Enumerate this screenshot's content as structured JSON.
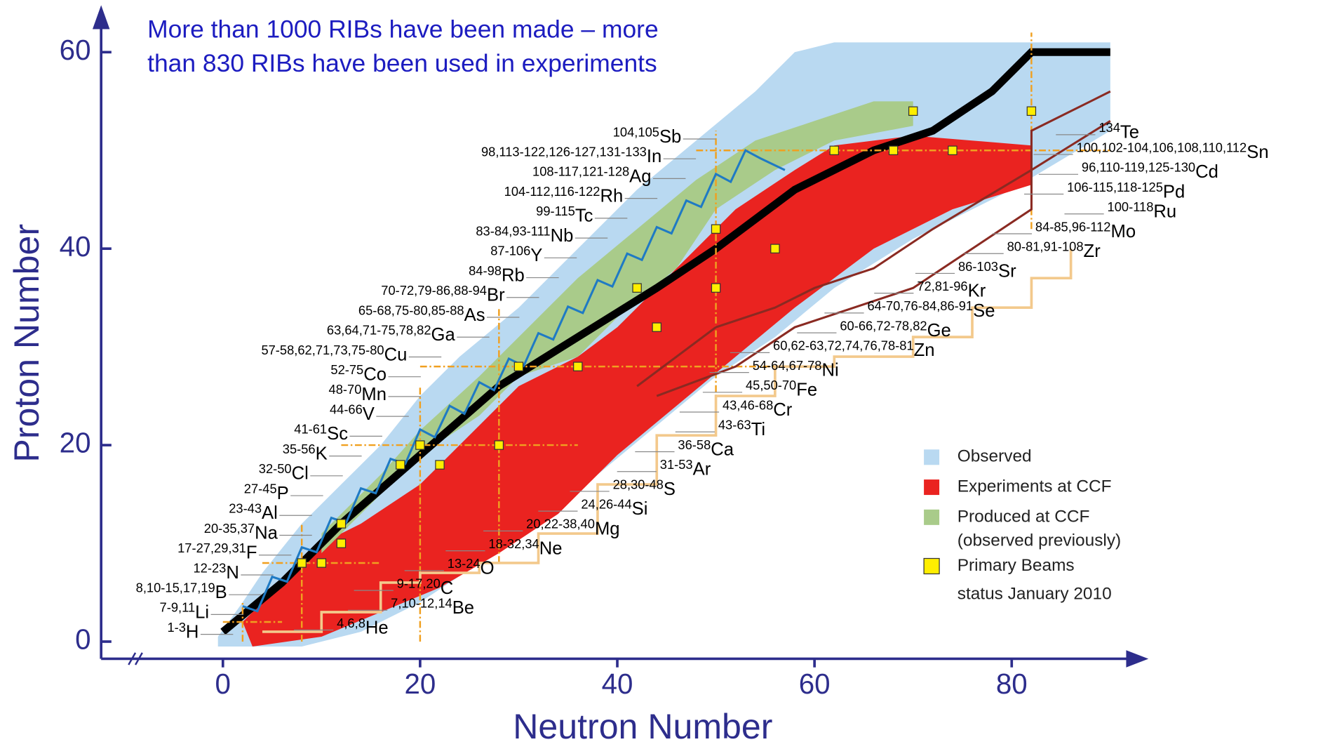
{
  "chart_data": {
    "type": "nuclide-chart",
    "title_lines": [
      "More than 1000 RIBs have been made – more",
      "than 830 RIBs have been used in experiments"
    ],
    "xlabel": "Neutron Number",
    "ylabel": "Proton Number",
    "xlim": [
      -12.35,
      93
    ],
    "ylim": [
      -1.75,
      64
    ],
    "xticks": [
      0,
      20,
      40,
      60,
      80
    ],
    "yticks": [
      0,
      20,
      40,
      60
    ],
    "series": [
      {
        "name": "Observed",
        "color": "#b9d9f1"
      },
      {
        "name": "Experiments at CCF",
        "color": "#ea2320"
      },
      {
        "name": "Produced at CCF",
        "note": "(observed previously)",
        "color": "#a9cb8a"
      },
      {
        "name": "Primary Beams",
        "color": "#ffee00",
        "x": [
          8,
          10,
          12,
          12,
          18,
          20,
          22,
          28,
          30,
          36,
          42,
          44,
          50,
          50,
          56,
          62,
          68,
          70,
          74,
          82
        ],
        "values": [
          8,
          8,
          10,
          12,
          18,
          20,
          18,
          20,
          28,
          28,
          36,
          32,
          36,
          42,
          40,
          50,
          50,
          54,
          50,
          54
        ]
      }
    ],
    "legend_note": "status January 2010",
    "left_labels": [
      {
        "isotopes": "104,105",
        "element": "Sb"
      },
      {
        "isotopes": "98,113-122,126-127,131-133",
        "element": "In"
      },
      {
        "isotopes": "108-117,121-128",
        "element": "Ag"
      },
      {
        "isotopes": "104-112,116-122",
        "element": "Rh"
      },
      {
        "isotopes": "99-115",
        "element": "Tc"
      },
      {
        "isotopes": "83-84,93-111",
        "element": "Nb"
      },
      {
        "isotopes": "87-106",
        "element": "Y"
      },
      {
        "isotopes": "84-98",
        "element": "Rb"
      },
      {
        "isotopes": "70-72,79-86,88-94",
        "element": "Br"
      },
      {
        "isotopes": "65-68,75-80,85-88",
        "element": "As"
      },
      {
        "isotopes": "63,64,71-75,78,82",
        "element": "Ga"
      },
      {
        "isotopes": "57-58,62,71,73,75-80",
        "element": "Cu"
      },
      {
        "isotopes": "52-75",
        "element": "Co"
      },
      {
        "isotopes": "48-70",
        "element": "Mn"
      },
      {
        "isotopes": "44-66",
        "element": "V"
      },
      {
        "isotopes": "41-61",
        "element": "Sc"
      },
      {
        "isotopes": "35-56",
        "element": "K"
      },
      {
        "isotopes": "32-50",
        "element": "Cl"
      },
      {
        "isotopes": "27-45",
        "element": "P"
      },
      {
        "isotopes": "23-43",
        "element": "Al"
      },
      {
        "isotopes": "20-35,37",
        "element": "Na"
      },
      {
        "isotopes": "17-27,29,31",
        "element": "F"
      },
      {
        "isotopes": "12-23",
        "element": "N"
      },
      {
        "isotopes": "8,10-15,17,19",
        "element": "B"
      },
      {
        "isotopes": "7-9,11",
        "element": "Li"
      },
      {
        "isotopes": "1-3",
        "element": "H"
      }
    ],
    "right_labels": [
      {
        "isotopes": "134",
        "element": "Te"
      },
      {
        "isotopes": "100,102-104,106,108,110,112",
        "element": "Sn"
      },
      {
        "isotopes": "96,110-119,125-130",
        "element": "Cd"
      },
      {
        "isotopes": "106-115,118-125",
        "element": "Pd"
      },
      {
        "isotopes": "100-118",
        "element": "Ru"
      },
      {
        "isotopes": "84-85,96-112",
        "element": "Mo"
      },
      {
        "isotopes": "80-81,91-108",
        "element": "Zr"
      },
      {
        "isotopes": "86-103",
        "element": "Sr"
      },
      {
        "isotopes": "72,81-96",
        "element": "Kr"
      },
      {
        "isotopes": "64-70,76-84,86-91",
        "element": "Se"
      },
      {
        "isotopes": "60-66,72-78,82",
        "element": "Ge"
      },
      {
        "isotopes": "60,62-63,72,74,76,78-81",
        "element": "Zn"
      },
      {
        "isotopes": "54-64,67-78",
        "element": "Ni"
      },
      {
        "isotopes": "45,50-70",
        "element": "Fe"
      },
      {
        "isotopes": "43,46-68",
        "element": "Cr"
      },
      {
        "isotopes": "43-63",
        "element": "Ti"
      },
      {
        "isotopes": "36-58",
        "element": "Ca"
      },
      {
        "isotopes": "31-53",
        "element": "Ar"
      },
      {
        "isotopes": "28,30-48",
        "element": "S"
      },
      {
        "isotopes": "24,26-44",
        "element": "Si"
      },
      {
        "isotopes": "20,22-38,40",
        "element": "Mg"
      },
      {
        "isotopes": "18-32,34",
        "element": "Ne"
      },
      {
        "isotopes": "13-24",
        "element": "O"
      },
      {
        "isotopes": "9-17,20",
        "element": "C"
      },
      {
        "isotopes": "7,10-12,14",
        "element": "Be"
      },
      {
        "isotopes": "4,6,8",
        "element": "He"
      }
    ]
  }
}
